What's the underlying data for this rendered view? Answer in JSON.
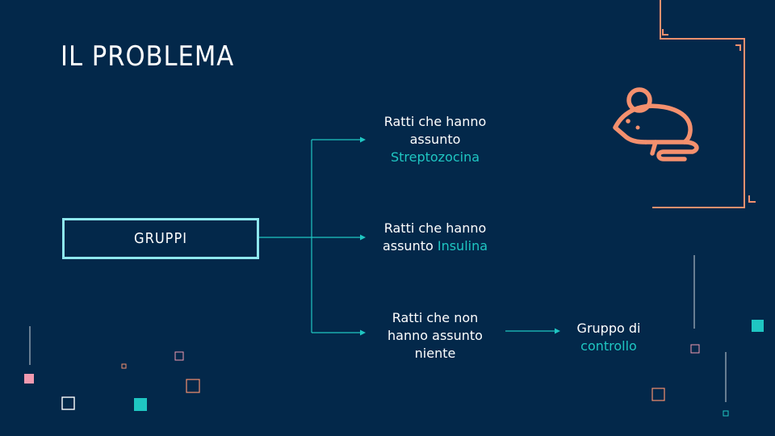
{
  "title": "IL PROBLEMA",
  "root": {
    "label": "GRUPPI"
  },
  "branches": [
    {
      "line1": "Ratti che hanno",
      "line2": "assunto",
      "highlight": "Streptozocina"
    },
    {
      "line1": "Ratti che hanno",
      "line2_prefix": "assunto ",
      "highlight": "Insulina"
    },
    {
      "line1": "Ratti che non",
      "line2": "hanno assunto",
      "line3": "niente"
    }
  ],
  "outcome": {
    "line1": "Gruppo di",
    "highlight": "controllo"
  },
  "icons": {
    "main": "rat-icon"
  },
  "colors": {
    "background": "#03284a",
    "accent": "#1fc6c2",
    "orange": "#f4906e",
    "pink": "#f29ab0",
    "box_border": "#8ee7ee"
  }
}
